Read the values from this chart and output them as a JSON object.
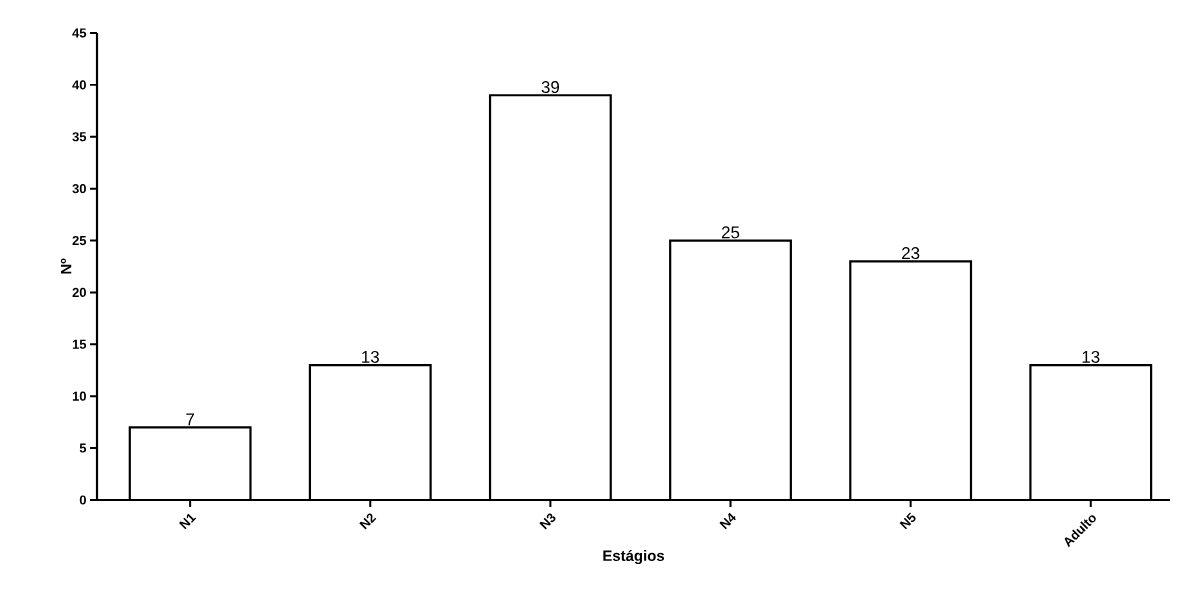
{
  "chart_data": {
    "type": "bar",
    "xlabel": "Estágios",
    "ylabel": "Nº",
    "categories": [
      "N1",
      "N2",
      "N3",
      "N4",
      "N5",
      "Adulto"
    ],
    "values": [
      7,
      13,
      39,
      25,
      23,
      13
    ],
    "color": "#ffffff",
    "ylim": [
      0,
      45
    ],
    "yticks": [
      0,
      5,
      10,
      15,
      20,
      25,
      30,
      35,
      40,
      45
    ],
    "data_labels": true
  }
}
